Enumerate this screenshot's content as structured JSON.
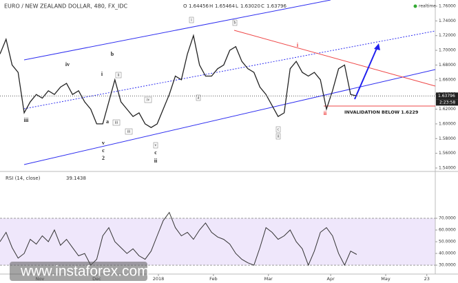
{
  "chart_data": {
    "type": "line",
    "title": "EURO / NEW ZEALAND DOLLAR, 480, FX_IDC",
    "ohlc": [
      {
        "name": "O",
        "value": 1.64456
      },
      {
        "name": "H",
        "value": 1.65464
      },
      {
        "name": "L",
        "value": 1.6302
      },
      {
        "name": "C",
        "value": 1.63796
      }
    ],
    "ohlc_labels": [
      "1.64456",
      "1.65464",
      "1.63020",
      "1.63796"
    ],
    "status": "realtime",
    "xlim": [
      0,
      72
    ],
    "xticks": [
      {
        "value": 6.6,
        "label": "Nov"
      },
      {
        "value": 16,
        "label": "Dec"
      },
      {
        "value": 26.2,
        "label": "2018"
      },
      {
        "value": 35.3,
        "label": "Feb"
      },
      {
        "value": 44.4,
        "label": "Mar"
      },
      {
        "value": 54.7,
        "label": "Apr"
      },
      {
        "value": 63.8,
        "label": "May"
      },
      {
        "value": 70.6,
        "label": "23"
      }
    ],
    "ylim": [
      1.5372,
      1.7684
    ],
    "yticks": [
      {
        "value": 1.54,
        "label": "1.54000"
      },
      {
        "value": 1.56,
        "label": "1.56000"
      },
      {
        "value": 1.58,
        "label": "1.58000"
      },
      {
        "value": 1.6,
        "label": "1.60000"
      },
      {
        "value": 1.62,
        "label": "1.62000"
      },
      {
        "value": 1.64,
        "label": "1.64000"
      },
      {
        "value": 1.66,
        "label": "1.66000"
      },
      {
        "value": 1.68,
        "label": "1.68000"
      },
      {
        "value": 1.7,
        "label": "1.70000"
      },
      {
        "value": 1.72,
        "label": "1.72000"
      },
      {
        "value": 1.74,
        "label": "1.74000"
      },
      {
        "value": 1.76,
        "label": "1.76000"
      }
    ],
    "series": [
      {
        "name": "EURNZD",
        "color": "#222222",
        "values": [
          1.695,
          1.715,
          1.68,
          1.67,
          1.615,
          1.63,
          1.64,
          1.635,
          1.645,
          1.64,
          1.65,
          1.655,
          1.64,
          1.645,
          1.63,
          1.62,
          1.6,
          1.6,
          1.63,
          1.66,
          1.63,
          1.62,
          1.61,
          1.615,
          1.6,
          1.595,
          1.6,
          1.62,
          1.64,
          1.665,
          1.66,
          1.695,
          1.72,
          1.68,
          1.665,
          1.665,
          1.675,
          1.68,
          1.7,
          1.705,
          1.685,
          1.675,
          1.67,
          1.65,
          1.64,
          1.625,
          1.61,
          1.615,
          1.675,
          1.685,
          1.67,
          1.665,
          1.67,
          1.66,
          1.62,
          1.645,
          1.675,
          1.68,
          1.64,
          1.638
        ]
      }
    ],
    "current_price": 1.63796,
    "countdown": "2:23:58",
    "annotations": [
      "iv",
      "b",
      "i",
      "iii",
      "a",
      "v",
      "c",
      "2",
      "i",
      "b",
      "ii",
      "iv",
      "iii",
      "iii",
      "a",
      "v",
      "c",
      "ii",
      "c",
      "ii",
      "i",
      "ii",
      "INVALIDATION BELOW 1.6229"
    ],
    "rsi": {
      "title": "RSI (14, close)",
      "last": 39.1438,
      "color": "#333333",
      "ylim": [
        22.4,
        109.4
      ],
      "yticks": [
        {
          "value": 30,
          "label": "30.0000"
        },
        {
          "value": 40,
          "label": "40.0000"
        },
        {
          "value": 50,
          "label": "50.0000"
        },
        {
          "value": 60,
          "label": "60.0000"
        },
        {
          "value": 70,
          "label": "70.0000"
        }
      ],
      "values": [
        50,
        58,
        45,
        36,
        40,
        52,
        48,
        55,
        50,
        60,
        47,
        52,
        45,
        38,
        40,
        30,
        35,
        55,
        62,
        50,
        45,
        40,
        44,
        38,
        35,
        42,
        55,
        68,
        75,
        62,
        55,
        58,
        52,
        60,
        66,
        58,
        54,
        52,
        48,
        40,
        35,
        32,
        30,
        45,
        62,
        58,
        52,
        55,
        60,
        50,
        44,
        30,
        42,
        58,
        62,
        55,
        40,
        30,
        42,
        39.1438
      ]
    },
    "watermark": "www.instaforex.com"
  }
}
